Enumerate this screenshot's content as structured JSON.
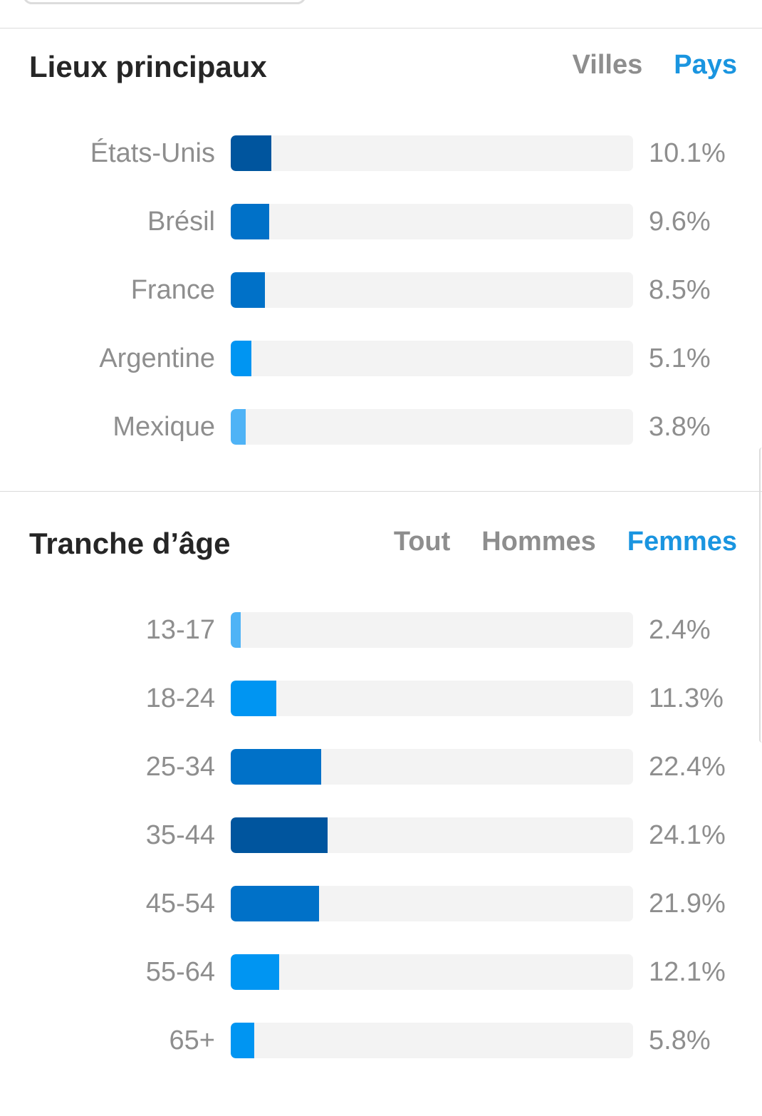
{
  "locations": {
    "title": "Lieux principaux",
    "tabs": [
      {
        "label": "Villes",
        "active": false
      },
      {
        "label": "Pays",
        "active": true
      }
    ],
    "rows": [
      {
        "label": "États-Unis",
        "value": "10.1%",
        "percent": 10.1,
        "color": "#00559e"
      },
      {
        "label": "Brésil",
        "value": "9.6%",
        "percent": 9.6,
        "color": "#0071c8"
      },
      {
        "label": "France",
        "value": "8.5%",
        "percent": 8.5,
        "color": "#0071c8"
      },
      {
        "label": "Argentine",
        "value": "5.1%",
        "percent": 5.1,
        "color": "#0095f2"
      },
      {
        "label": "Mexique",
        "value": "3.8%",
        "percent": 3.8,
        "color": "#4fb3f6"
      }
    ]
  },
  "age": {
    "title": "Tranche d’âge",
    "tabs": [
      {
        "label": "Tout",
        "active": false
      },
      {
        "label": "Hommes",
        "active": false
      },
      {
        "label": "Femmes",
        "active": true
      }
    ],
    "rows": [
      {
        "label": "13-17",
        "value": "2.4%",
        "percent": 2.4,
        "color": "#4fb3f6"
      },
      {
        "label": "18-24",
        "value": "11.3%",
        "percent": 11.3,
        "color": "#0095f2"
      },
      {
        "label": "25-34",
        "value": "22.4%",
        "percent": 22.4,
        "color": "#0071c8"
      },
      {
        "label": "35-44",
        "value": "24.1%",
        "percent": 24.1,
        "color": "#00559e"
      },
      {
        "label": "45-54",
        "value": "21.9%",
        "percent": 21.9,
        "color": "#0071c8"
      },
      {
        "label": "55-64",
        "value": "12.1%",
        "percent": 12.1,
        "color": "#0095f2"
      },
      {
        "label": "65+",
        "value": "5.8%",
        "percent": 5.8,
        "color": "#0095f2"
      }
    ]
  }
}
